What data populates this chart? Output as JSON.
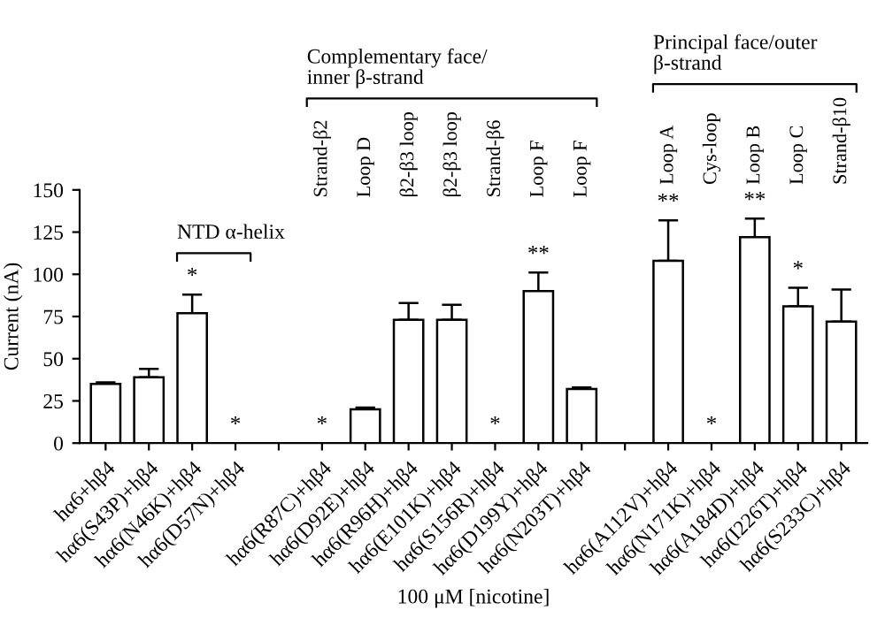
{
  "chart_data": {
    "type": "bar",
    "xlabel": "100 μM [nicotine]",
    "ylabel": "Current (nA)",
    "categories": [
      "hα6+hβ4",
      "hα6(S43P)+hβ4",
      "hα6(N46K)+hβ4",
      "hα6(D57N)+hβ4",
      null,
      "hα6(R87C)+hβ4",
      "hα6(D92E)+hβ4",
      "hα6(R96H)+hβ4",
      "hα6(E101K)+hβ4",
      "hα6(S156R)+hβ4",
      "hα6(D199Y)+hβ4",
      "hα6(N203T)+hβ4",
      null,
      "hα6(A112V)+hβ4",
      "hα6(N171K)+hβ4",
      "hα6(A184D)+hβ4",
      "hα6(I226T)+hβ4",
      "hα6(S233C)+hβ4"
    ],
    "series": [
      {
        "color": "#ffffff",
        "values": [
          35,
          39,
          77,
          0,
          null,
          0,
          20,
          73,
          73,
          0,
          90,
          32,
          null,
          108,
          0,
          122,
          81,
          72
        ],
        "errors": [
          1,
          5,
          11,
          null,
          null,
          null,
          1,
          10,
          9,
          null,
          11,
          1,
          null,
          24,
          null,
          11,
          11,
          19
        ],
        "value_labels": [
          null,
          null,
          "*",
          "*",
          null,
          "*",
          null,
          null,
          null,
          "*",
          "**",
          null,
          null,
          "**",
          "*",
          "**",
          "*",
          null
        ]
      }
    ],
    "ylim": [
      0,
      150
    ],
    "yticks": [
      0,
      25,
      50,
      75,
      100,
      125,
      150
    ],
    "grid": false,
    "legend": false,
    "annotations": [
      "NTD α-helix",
      "Complementary face/\ninner β-strand",
      "Principal face/outer\nβ-strand",
      "Strand-β2",
      "Loop D",
      "β2-β3 loop",
      "β2-β3 loop",
      "Strand-β6",
      "Loop F",
      "Loop F",
      "Loop A",
      "Cys-loop",
      "Loop B",
      "Loop C",
      "Strand-β10"
    ]
  }
}
